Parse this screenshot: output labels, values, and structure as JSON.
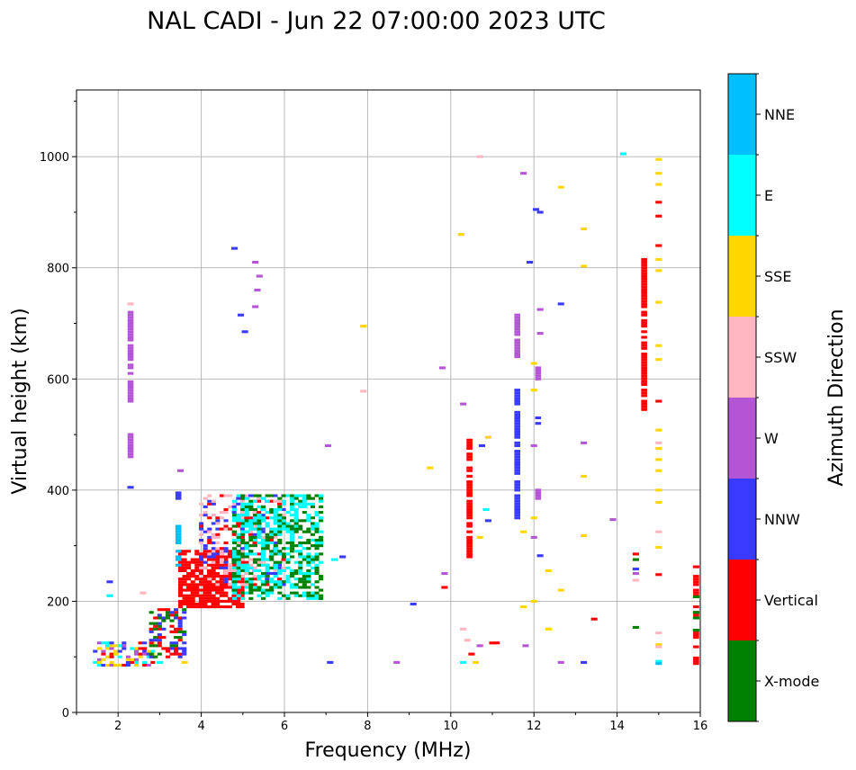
{
  "chart_data": {
    "type": "scatter",
    "title": "NAL CADI - Jun 22 07:00:00 2023 UTC",
    "xlabel": "Frequency (MHz)",
    "ylabel": "Virtual height (km)",
    "xlim": [
      1,
      16
    ],
    "ylim": [
      0,
      1120
    ],
    "xticks": [
      2,
      4,
      6,
      8,
      10,
      12,
      14,
      16
    ],
    "yticks": [
      0,
      200,
      400,
      600,
      800,
      1000
    ],
    "grid": true,
    "colorbar": {
      "label": "Azimuth Direction",
      "categories": [
        {
          "name": "X-mode",
          "color": "#008000"
        },
        {
          "name": "Vertical",
          "color": "#ff0000"
        },
        {
          "name": "NNW",
          "color": "#3a3aff"
        },
        {
          "name": "W",
          "color": "#b455d5"
        },
        {
          "name": "SSW",
          "color": "#ffb6c1"
        },
        {
          "name": "SSE",
          "color": "#ffd700"
        },
        {
          "name": "E",
          "color": "#00ffff"
        },
        {
          "name": "NNE",
          "color": "#00bfff"
        }
      ]
    },
    "cell_size": {
      "freq_mhz": 0.11,
      "height_km": 5
    },
    "columns": [
      {
        "x": 2.3,
        "y0": 560,
        "y1": 720,
        "az": "W"
      },
      {
        "x": 2.3,
        "y0": 455,
        "y1": 500,
        "az": "W"
      },
      {
        "x": 3.45,
        "y0": 260,
        "y1": 335,
        "az": "NNE"
      },
      {
        "x": 3.45,
        "y0": 385,
        "y1": 395,
        "az": "NNW"
      },
      {
        "x": 11.6,
        "y0": 350,
        "y1": 580,
        "az": "NNW"
      },
      {
        "x": 11.6,
        "y0": 640,
        "y1": 720,
        "az": "W"
      },
      {
        "x": 12.1,
        "y0": 380,
        "y1": 400,
        "az": "W"
      },
      {
        "x": 12.1,
        "y0": 515,
        "y1": 530,
        "az": "NNW"
      },
      {
        "x": 12.1,
        "y0": 600,
        "y1": 625,
        "az": "W"
      },
      {
        "x": 14.65,
        "y0": 545,
        "y1": 815,
        "az": "Vertical"
      },
      {
        "x": 15.9,
        "y0": 88,
        "y1": 120,
        "az": "Vertical"
      },
      {
        "x": 15.9,
        "y0": 135,
        "y1": 145,
        "az": "Vertical"
      },
      {
        "x": 15.9,
        "y0": 170,
        "y1": 190,
        "az": "Vertical"
      },
      {
        "x": 15.9,
        "y0": 200,
        "y1": 220,
        "az": "Vertical"
      },
      {
        "x": 15.9,
        "y0": 230,
        "y1": 245,
        "az": "Vertical"
      },
      {
        "x": 10.45,
        "y0": 280,
        "y1": 490,
        "az": "Vertical"
      }
    ],
    "clusters": [
      {
        "x0": 1.45,
        "x1": 2.9,
        "y0": 85,
        "y1": 125,
        "az": [
          "Vertical",
          "W",
          "SSE",
          "E",
          "NNW"
        ],
        "density": 0.5
      },
      {
        "x0": 2.8,
        "x1": 3.6,
        "y0": 100,
        "y1": 185,
        "az": [
          "Vertical",
          "NNW",
          "X-mode"
        ],
        "density": 0.55
      },
      {
        "x0": 3.5,
        "x1": 5.0,
        "y0": 190,
        "y1": 290,
        "az": [
          "Vertical"
        ],
        "density": 0.75
      },
      {
        "x0": 4.0,
        "x1": 6.0,
        "y0": 230,
        "y1": 390,
        "az": [
          "Vertical",
          "NNW",
          "SSW"
        ],
        "density": 0.35
      },
      {
        "x0": 4.8,
        "x1": 6.9,
        "y0": 205,
        "y1": 390,
        "az": [
          "X-mode",
          "E"
        ],
        "density": 0.55
      }
    ],
    "scatter_points": [
      {
        "x": 1.8,
        "y": 235,
        "az": "NNW"
      },
      {
        "x": 1.8,
        "y": 210,
        "az": "E"
      },
      {
        "x": 2.6,
        "y": 215,
        "az": "SSW"
      },
      {
        "x": 2.3,
        "y": 405,
        "az": "NNW"
      },
      {
        "x": 2.3,
        "y": 735,
        "az": "SSW"
      },
      {
        "x": 3.0,
        "y": 90,
        "az": "E"
      },
      {
        "x": 3.6,
        "y": 90,
        "az": "SSE"
      },
      {
        "x": 3.5,
        "y": 435,
        "az": "W"
      },
      {
        "x": 4.8,
        "y": 835,
        "az": "NNW"
      },
      {
        "x": 5.3,
        "y": 810,
        "az": "W"
      },
      {
        "x": 5.4,
        "y": 785,
        "az": "W"
      },
      {
        "x": 5.35,
        "y": 760,
        "az": "W"
      },
      {
        "x": 5.3,
        "y": 730,
        "az": "W"
      },
      {
        "x": 4.95,
        "y": 715,
        "az": "NNW"
      },
      {
        "x": 5.05,
        "y": 685,
        "az": "NNW"
      },
      {
        "x": 7.05,
        "y": 480,
        "az": "W"
      },
      {
        "x": 7.1,
        "y": 90,
        "az": "NNW"
      },
      {
        "x": 7.2,
        "y": 275,
        "az": "E"
      },
      {
        "x": 7.4,
        "y": 280,
        "az": "NNW"
      },
      {
        "x": 7.9,
        "y": 695,
        "az": "SSE"
      },
      {
        "x": 7.9,
        "y": 578,
        "az": "SSW"
      },
      {
        "x": 8.7,
        "y": 90,
        "az": "W"
      },
      {
        "x": 9.1,
        "y": 195,
        "az": "NNW"
      },
      {
        "x": 9.5,
        "y": 440,
        "az": "SSE"
      },
      {
        "x": 9.8,
        "y": 620,
        "az": "W"
      },
      {
        "x": 9.85,
        "y": 250,
        "az": "W"
      },
      {
        "x": 9.85,
        "y": 225,
        "az": "Vertical"
      },
      {
        "x": 10.25,
        "y": 860,
        "az": "SSE"
      },
      {
        "x": 10.3,
        "y": 555,
        "az": "W"
      },
      {
        "x": 10.3,
        "y": 150,
        "az": "SSW"
      },
      {
        "x": 10.3,
        "y": 90,
        "az": "E"
      },
      {
        "x": 10.4,
        "y": 130,
        "az": "SSW"
      },
      {
        "x": 10.5,
        "y": 105,
        "az": "Vertical"
      },
      {
        "x": 10.6,
        "y": 90,
        "az": "SSE"
      },
      {
        "x": 10.7,
        "y": 120,
        "az": "W"
      },
      {
        "x": 10.7,
        "y": 315,
        "az": "SSE"
      },
      {
        "x": 10.75,
        "y": 480,
        "az": "NNW"
      },
      {
        "x": 10.9,
        "y": 345,
        "az": "NNW"
      },
      {
        "x": 10.9,
        "y": 495,
        "az": "SSE"
      },
      {
        "x": 11.0,
        "y": 125,
        "az": "Vertical"
      },
      {
        "x": 11.1,
        "y": 125,
        "az": "Vertical"
      },
      {
        "x": 10.7,
        "y": 1000,
        "az": "SSW"
      },
      {
        "x": 10.85,
        "y": 365,
        "az": "E"
      },
      {
        "x": 11.75,
        "y": 970,
        "az": "W"
      },
      {
        "x": 11.75,
        "y": 325,
        "az": "SSE"
      },
      {
        "x": 11.75,
        "y": 190,
        "az": "SSE"
      },
      {
        "x": 11.8,
        "y": 120,
        "az": "W"
      },
      {
        "x": 11.9,
        "y": 810,
        "az": "NNW"
      },
      {
        "x": 12.05,
        "y": 905,
        "az": "NNW"
      },
      {
        "x": 12.15,
        "y": 900,
        "az": "NNW"
      },
      {
        "x": 12.15,
        "y": 725,
        "az": "W"
      },
      {
        "x": 12.15,
        "y": 682,
        "az": "W"
      },
      {
        "x": 12.0,
        "y": 628,
        "az": "SSE"
      },
      {
        "x": 12.0,
        "y": 580,
        "az": "SSE"
      },
      {
        "x": 12.0,
        "y": 480,
        "az": "W"
      },
      {
        "x": 12.0,
        "y": 350,
        "az": "SSE"
      },
      {
        "x": 12.0,
        "y": 315,
        "az": "W"
      },
      {
        "x": 12.0,
        "y": 200,
        "az": "SSE"
      },
      {
        "x": 12.15,
        "y": 282,
        "az": "NNW"
      },
      {
        "x": 12.35,
        "y": 255,
        "az": "SSE"
      },
      {
        "x": 12.35,
        "y": 150,
        "az": "SSE"
      },
      {
        "x": 12.65,
        "y": 945,
        "az": "SSE"
      },
      {
        "x": 12.65,
        "y": 735,
        "az": "NNW"
      },
      {
        "x": 12.65,
        "y": 220,
        "az": "SSE"
      },
      {
        "x": 12.65,
        "y": 90,
        "az": "W"
      },
      {
        "x": 13.2,
        "y": 870,
        "az": "SSE"
      },
      {
        "x": 13.2,
        "y": 803,
        "az": "SSE"
      },
      {
        "x": 13.2,
        "y": 485,
        "az": "W"
      },
      {
        "x": 13.2,
        "y": 425,
        "az": "SSE"
      },
      {
        "x": 13.2,
        "y": 318,
        "az": "SSE"
      },
      {
        "x": 13.2,
        "y": 90,
        "az": "NNW"
      },
      {
        "x": 13.45,
        "y": 168,
        "az": "Vertical"
      },
      {
        "x": 13.9,
        "y": 347,
        "az": "W"
      },
      {
        "x": 14.15,
        "y": 1005,
        "az": "E"
      },
      {
        "x": 14.45,
        "y": 285,
        "az": "Vertical"
      },
      {
        "x": 14.45,
        "y": 275,
        "az": "X-mode"
      },
      {
        "x": 14.45,
        "y": 258,
        "az": "NNW"
      },
      {
        "x": 14.45,
        "y": 250,
        "az": "W"
      },
      {
        "x": 14.45,
        "y": 238,
        "az": "SSW"
      },
      {
        "x": 14.45,
        "y": 153,
        "az": "X-mode"
      },
      {
        "x": 15.0,
        "y": 995,
        "az": "SSE"
      },
      {
        "x": 15.0,
        "y": 970,
        "az": "SSE"
      },
      {
        "x": 15.0,
        "y": 950,
        "az": "SSE"
      },
      {
        "x": 15.0,
        "y": 918,
        "az": "Vertical"
      },
      {
        "x": 15.0,
        "y": 893,
        "az": "Vertical"
      },
      {
        "x": 15.0,
        "y": 840,
        "az": "Vertical"
      },
      {
        "x": 15.0,
        "y": 815,
        "az": "SSE"
      },
      {
        "x": 15.0,
        "y": 795,
        "az": "SSE"
      },
      {
        "x": 15.0,
        "y": 738,
        "az": "SSE"
      },
      {
        "x": 15.0,
        "y": 660,
        "az": "SSE"
      },
      {
        "x": 15.0,
        "y": 635,
        "az": "SSE"
      },
      {
        "x": 15.0,
        "y": 560,
        "az": "Vertical"
      },
      {
        "x": 15.0,
        "y": 508,
        "az": "SSE"
      },
      {
        "x": 15.0,
        "y": 485,
        "az": "SSW"
      },
      {
        "x": 15.0,
        "y": 475,
        "az": "SSE"
      },
      {
        "x": 15.0,
        "y": 455,
        "az": "SSE"
      },
      {
        "x": 15.0,
        "y": 435,
        "az": "SSE"
      },
      {
        "x": 15.0,
        "y": 400,
        "az": "SSE"
      },
      {
        "x": 15.0,
        "y": 378,
        "az": "SSE"
      },
      {
        "x": 15.0,
        "y": 325,
        "az": "SSW"
      },
      {
        "x": 15.0,
        "y": 297,
        "az": "SSE"
      },
      {
        "x": 15.0,
        "y": 248,
        "az": "Vertical"
      },
      {
        "x": 15.0,
        "y": 143,
        "az": "SSW"
      },
      {
        "x": 15.0,
        "y": 122,
        "az": "SSE"
      },
      {
        "x": 15.0,
        "y": 118,
        "az": "SSW"
      },
      {
        "x": 15.0,
        "y": 92,
        "az": "E"
      },
      {
        "x": 15.0,
        "y": 88,
        "az": "NNE"
      },
      {
        "x": 15.9,
        "y": 262,
        "az": "Vertical"
      },
      {
        "x": 15.9,
        "y": 208,
        "az": "X-mode"
      },
      {
        "x": 15.9,
        "y": 180,
        "az": "X-mode"
      },
      {
        "x": 15.9,
        "y": 170,
        "az": "X-mode"
      },
      {
        "x": 15.9,
        "y": 148,
        "az": "X-mode"
      }
    ]
  }
}
